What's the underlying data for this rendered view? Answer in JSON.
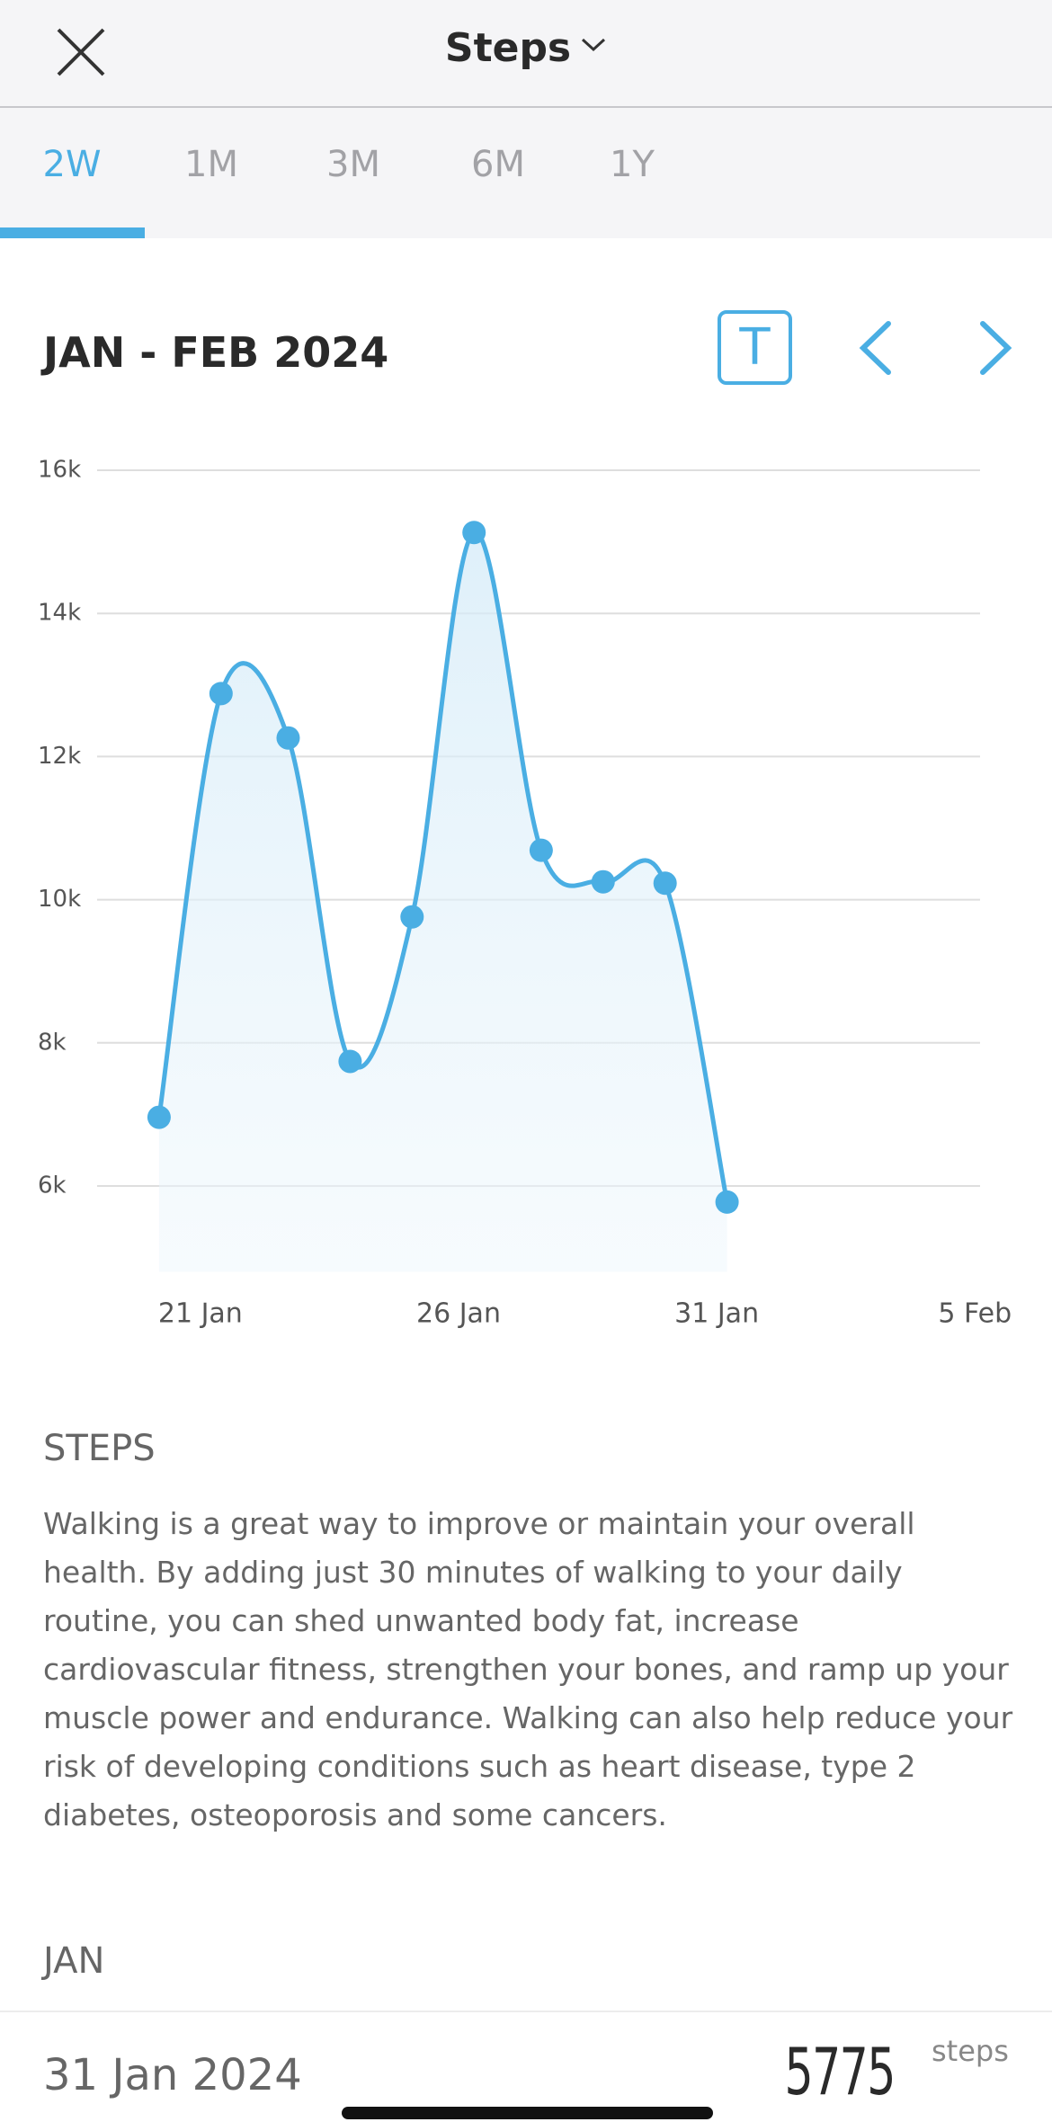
{
  "header": {
    "title": "Steps"
  },
  "tabs": [
    "2W",
    "1M",
    "3M",
    "6M",
    "1Y"
  ],
  "period": "JAN - FEB 2024",
  "toggle": "T",
  "chart_data": {
    "type": "line",
    "x": [
      20.2,
      21.4,
      22.7,
      23.9,
      25.1,
      26.3,
      27.6,
      28.8,
      30.0,
      31.2
    ],
    "values": [
      6960,
      12880,
      12260,
      7740,
      9760,
      15130,
      10690,
      10250,
      10230,
      5775
    ],
    "color": "#4aaee3",
    "xlim": [
      19,
      36.1
    ],
    "xticks": [
      {
        "value": 21,
        "label": "21 Jan"
      },
      {
        "value": 26,
        "label": "26 Jan"
      },
      {
        "value": 31,
        "label": "31 Jan"
      },
      {
        "value": 36,
        "label": "5 Feb"
      }
    ],
    "ylim": [
      4800,
      16000
    ],
    "yticks": [
      {
        "value": 6000,
        "label": "6k"
      },
      {
        "value": 8000,
        "label": "8k"
      },
      {
        "value": 10000,
        "label": "10k"
      },
      {
        "value": 12000,
        "label": "12k"
      },
      {
        "value": 14000,
        "label": "14k"
      },
      {
        "value": 16000,
        "label": "16k"
      }
    ],
    "grid": true
  },
  "article": {
    "heading": "STEPS",
    "body": "Walking is a great way to improve or maintain your overall health. By adding just 30 minutes of walking to your daily routine, you can shed unwanted body fat, increase cardiovascular fitness, strengthen your bones, and ramp up your muscle power and endurance. Walking can also help reduce your risk of developing conditions such as heart disease, type 2 diabetes, osteoporosis and some cancers."
  },
  "list": {
    "month": "JAN",
    "rows": [
      {
        "date": "31 Jan 2024",
        "value": 5775,
        "unit": "steps"
      }
    ]
  }
}
